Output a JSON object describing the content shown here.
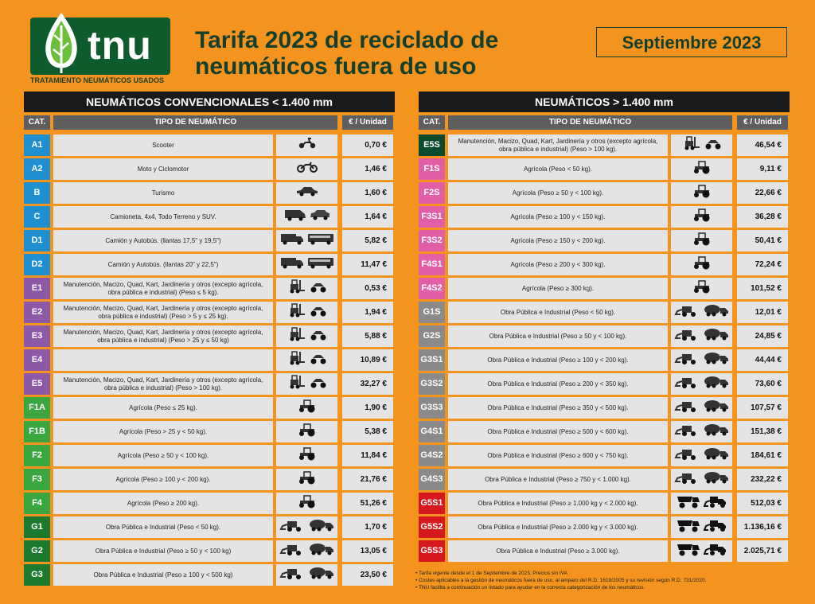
{
  "brand": {
    "name": "tnu",
    "subtitle": "TRATAMIENTO NEUMÁTICOS USADOS"
  },
  "title": {
    "line1": "Tarifa 2023 de reciclado de",
    "line2": "neumáticos fuera de uso"
  },
  "date_label": "Septiembre 2023",
  "colors": {
    "background": "#f4941e",
    "header": "#1a1a1a",
    "colhead": "#5e5e5e",
    "cell": "#e4e4e4",
    "brand": "#0e5b2e"
  },
  "left_table": {
    "heading": "NEUMÁTICOS CONVENCIONALES < 1.400 mm",
    "columns": {
      "cat": "CAT.",
      "type": "TIPO DE NEUMÁTICO",
      "price": "€ / Unidad"
    },
    "rows": [
      {
        "cat": "A1",
        "color": "#1f8fd0",
        "desc": "Scooter",
        "icons": [
          "scooter-icon"
        ],
        "price": "0,70 €"
      },
      {
        "cat": "A2",
        "color": "#1f8fd0",
        "desc": "Moto y Ciclomotor",
        "icons": [
          "motorcycle-icon"
        ],
        "price": "1,46 €"
      },
      {
        "cat": "B",
        "color": "#1f8fd0",
        "desc": "Turismo",
        "icons": [
          "car-icon"
        ],
        "price": "1,60 €"
      },
      {
        "cat": "C",
        "color": "#1f8fd0",
        "desc": "Camioneta, 4x4, Todo Terreno y SUV.",
        "icons": [
          "van-icon",
          "suv-icon"
        ],
        "price": "1,64 €"
      },
      {
        "cat": "D1",
        "color": "#1f8fd0",
        "desc": "Camión y Autobús. (llantas 17,5\" y 19,5\")",
        "icons": [
          "truck-icon",
          "bus-icon"
        ],
        "price": "5,82 €"
      },
      {
        "cat": "D2",
        "color": "#1f8fd0",
        "desc": "Camión y Autobús. (llantas 20\" y 22,5\")",
        "icons": [
          "truck-icon",
          "bus-icon"
        ],
        "price": "11,47 €"
      },
      {
        "cat": "E1",
        "color": "#8b59a6",
        "desc": "Manutención, Macizo, Quad, Kart, Jardinería y otros (excepto agrícola, obra pública e industrial) (Peso ≤ 5 kg).",
        "icons": [
          "forklift-icon",
          "quad-icon"
        ],
        "price": "0,53 €"
      },
      {
        "cat": "E2",
        "color": "#8b59a6",
        "desc": "Manutención, Macizo, Quad, Kart, Jardinería y otros (excepto agrícola, obra pública e industrial) (Peso > 5 y ≤ 25 kg).",
        "icons": [
          "forklift-icon",
          "quad-icon"
        ],
        "price": "1,94 €"
      },
      {
        "cat": "E3",
        "color": "#8b59a6",
        "desc": "Manutención, Macizo, Quad, Kart, Jardinería y otros (excepto agrícola, obra pública e industrial) (Peso > 25 y ≤ 50 kg)",
        "icons": [
          "forklift-icon",
          "quad-icon"
        ],
        "price": "5,88 €"
      },
      {
        "cat": "E4",
        "color": "#8b59a6",
        "desc": "",
        "icons": [
          "forklift-icon",
          "quad-icon"
        ],
        "price": "10,89 €"
      },
      {
        "cat": "E5",
        "color": "#8b59a6",
        "desc": "Manutención, Macizo, Quad, Kart, Jardinería y otros (excepto agrícola, obra pública e industrial) (Peso > 100 kg).",
        "icons": [
          "forklift-icon",
          "quad-icon"
        ],
        "price": "32,27 €"
      },
      {
        "cat": "F1A",
        "color": "#3aa640",
        "desc": "Agrícola (Peso ≤ 25 kg).",
        "icons": [
          "tractor-icon"
        ],
        "price": "1,90 €"
      },
      {
        "cat": "F1B",
        "color": "#3aa640",
        "desc": "Agrícola (Peso > 25 y < 50 kg).",
        "icons": [
          "tractor-icon"
        ],
        "price": "5,38 €"
      },
      {
        "cat": "F2",
        "color": "#3aa640",
        "desc": "Agrícola (Peso ≥ 50 y < 100 kg).",
        "icons": [
          "tractor-icon"
        ],
        "price": "11,84 €"
      },
      {
        "cat": "F3",
        "color": "#3aa640",
        "desc": "Agrícola (Peso ≥ 100 y < 200 kg).",
        "icons": [
          "tractor-icon"
        ],
        "price": "21,76 €"
      },
      {
        "cat": "F4",
        "color": "#3aa640",
        "desc": "Agrícola (Peso ≥ 200 kg).",
        "icons": [
          "tractor-icon"
        ],
        "price": "51,26 €"
      },
      {
        "cat": "G1",
        "color": "#1b7a2e",
        "desc": "Obra Pública e Industrial (Peso < 50 kg).",
        "icons": [
          "loader-icon",
          "mixer-icon"
        ],
        "price": "1,70 €"
      },
      {
        "cat": "G2",
        "color": "#1b7a2e",
        "desc": "Obra Pública e Industrial (Peso ≥ 50 y < 100 kg)",
        "icons": [
          "loader-icon",
          "mixer-icon"
        ],
        "price": "13,05 €"
      },
      {
        "cat": "G3",
        "color": "#1b7a2e",
        "desc": "Obra Pública e Industrial (Peso ≥ 100 y < 500 kg)",
        "icons": [
          "loader-icon",
          "mixer-icon"
        ],
        "price": "23,50 €"
      }
    ]
  },
  "right_table": {
    "heading": "NEUMÁTICOS > 1.400 mm",
    "columns": {
      "cat": "CAT.",
      "type": "TIPO DE NEUMÁTICO",
      "price": "€ / Unidad"
    },
    "rows": [
      {
        "cat": "E5S",
        "color": "#0b4a2c",
        "desc": "Manutención, Macizo, Quad, Kart, Jardinería y otros (excepto agrícola, obra pública e industrial) (Peso > 100 kg).",
        "icons": [
          "forklift-icon",
          "quad-icon"
        ],
        "price": "46,54 €"
      },
      {
        "cat": "F1S",
        "color": "#e35fa5",
        "desc": "Agrícola (Peso < 50 kg).",
        "icons": [
          "tractor-icon"
        ],
        "price": "9,11 €"
      },
      {
        "cat": "F2S",
        "color": "#e35fa5",
        "desc": "Agrícola (Peso ≥ 50 y < 100 kg).",
        "icons": [
          "tractor-icon"
        ],
        "price": "22,66 €"
      },
      {
        "cat": "F3S1",
        "color": "#e35fa5",
        "desc": "Agrícola (Peso ≥ 100 y < 150 kg).",
        "icons": [
          "tractor-icon"
        ],
        "price": "36,28 €"
      },
      {
        "cat": "F3S2",
        "color": "#e35fa5",
        "desc": "Agrícola (Peso ≥ 150 y < 200 kg).",
        "icons": [
          "tractor-icon"
        ],
        "price": "50,41 €"
      },
      {
        "cat": "F4S1",
        "color": "#e35fa5",
        "desc": "Agrícola (Peso ≥ 200 y < 300 kg).",
        "icons": [
          "tractor-icon"
        ],
        "price": "72,24 €"
      },
      {
        "cat": "F4S2",
        "color": "#e35fa5",
        "desc": "Agrícola (Peso ≥ 300 kg).",
        "icons": [
          "tractor-icon"
        ],
        "price": "101,52 €"
      },
      {
        "cat": "G1S",
        "color": "#8a8a8a",
        "desc": "Obra Pública e Industrial (Peso < 50 kg).",
        "icons": [
          "loader-icon",
          "mixer-icon"
        ],
        "price": "12,01 €"
      },
      {
        "cat": "G2S",
        "color": "#8a8a8a",
        "desc": "Obra Pública e Industrial (Peso ≥ 50 y < 100 kg).",
        "icons": [
          "loader-icon",
          "mixer-icon"
        ],
        "price": "24,85 €"
      },
      {
        "cat": "G3S1",
        "color": "#8a8a8a",
        "desc": "Obra Pública e Industrial (Peso ≥ 100 y < 200 kg).",
        "icons": [
          "loader-icon",
          "mixer-icon"
        ],
        "price": "44,44 €"
      },
      {
        "cat": "G3S2",
        "color": "#8a8a8a",
        "desc": "Obra Pública e Industrial (Peso ≥ 200 y < 350 kg).",
        "icons": [
          "loader-icon",
          "mixer-icon"
        ],
        "price": "73,60 €"
      },
      {
        "cat": "G3S3",
        "color": "#8a8a8a",
        "desc": "Obra Pública e Industrial (Peso ≥ 350 y < 500 kg).",
        "icons": [
          "loader-icon",
          "mixer-icon"
        ],
        "price": "107,57 €"
      },
      {
        "cat": "G4S1",
        "color": "#8a8a8a",
        "desc": "Obra Pública e Industrial (Peso ≥ 500 y < 600 kg).",
        "icons": [
          "loader-icon",
          "mixer-icon"
        ],
        "price": "151,38 €"
      },
      {
        "cat": "G4S2",
        "color": "#8a8a8a",
        "desc": "Obra Pública e Industrial (Peso ≥ 600 y < 750 kg).",
        "icons": [
          "loader-icon",
          "mixer-icon"
        ],
        "price": "184,61 €"
      },
      {
        "cat": "G4S3",
        "color": "#8a8a8a",
        "desc": "Obra Pública e Industrial (Peso ≥ 750 y < 1.000 kg).",
        "icons": [
          "loader-icon",
          "mixer-icon"
        ],
        "price": "232,22 €"
      },
      {
        "cat": "G5S1",
        "color": "#d7191f",
        "desc": "Obra Pública e Industrial (Peso ≥ 1.000 kg y < 2.000 kg).",
        "icons": [
          "dumper-icon",
          "bulldozer-icon"
        ],
        "price": "512,03 €"
      },
      {
        "cat": "G5S2",
        "color": "#d7191f",
        "desc": "Obra Pública e Industrial (Peso ≥ 2.000 kg y < 3.000 kg).",
        "icons": [
          "dumper-icon",
          "bulldozer-icon"
        ],
        "price": "1.136,16 €"
      },
      {
        "cat": "G5S3",
        "color": "#d7191f",
        "desc": "Obra Pública e Industrial (Peso ≥ 3.000 kg).",
        "icons": [
          "dumper-icon",
          "bulldozer-icon"
        ],
        "price": "2.025,71 €"
      }
    ]
  },
  "footnotes": [
    "• Tarifa vigente desde el 1 de Septiembre de 2023. Precios sin IVA",
    "• Costes aplicables a la gestión de neumáticos fuera de uso, al amparo del R.D. 1619/2005 y su revisión según R.D. 731/2020.",
    "• TNU facilita a continuación un listado para ayudar en la correcta categorización de los neumáticos."
  ]
}
